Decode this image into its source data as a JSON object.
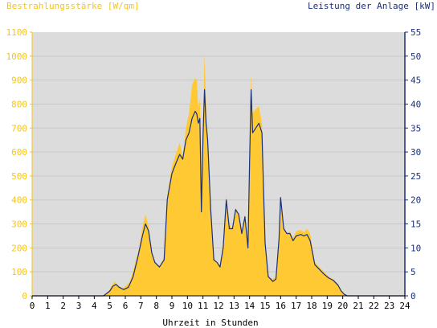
{
  "chart_data": {
    "type": "area",
    "y_left_label": "Bestrahlungsstärke [W/qm]",
    "y_right_label": "Leistung der Anlage [kW]",
    "xlabel": "Uhrzeit in Stunden",
    "xlim": [
      0,
      24
    ],
    "ylim_left": [
      0,
      1100
    ],
    "ylim_right": [
      0,
      55
    ],
    "x_ticks": [
      "0",
      "1",
      "2",
      "3",
      "4",
      "5",
      "6",
      "7",
      "8",
      "9",
      "10",
      "11",
      "12",
      "13",
      "14",
      "15",
      "16",
      "17",
      "18",
      "19",
      "20",
      "21",
      "22",
      "23",
      "24"
    ],
    "y_left_ticks": [
      "0",
      "100",
      "200",
      "300",
      "400",
      "500",
      "600",
      "700",
      "800",
      "900",
      "1000",
      "1100"
    ],
    "y_right_ticks": [
      "0",
      "5",
      "10",
      "15",
      "20",
      "25",
      "30",
      "35",
      "40",
      "45",
      "50",
      "55"
    ],
    "grid": "horizontal",
    "colors": {
      "irradiance": "#ffc933",
      "power": "#1a2f7a",
      "plot_bg": "#dcdcdc",
      "left_axis": "#f5c518",
      "right_axis": "#1a2f7a"
    },
    "series": [
      {
        "name": "Bestrahlungsstärke [W/qm]",
        "axis": "left",
        "style": "area",
        "points": [
          [
            0,
            0
          ],
          [
            4.5,
            0
          ],
          [
            4.9,
            15
          ],
          [
            5.1,
            40
          ],
          [
            5.3,
            60
          ],
          [
            5.5,
            45
          ],
          [
            5.8,
            30
          ],
          [
            6,
            40
          ],
          [
            6.3,
            60
          ],
          [
            6.6,
            130
          ],
          [
            6.9,
            200
          ],
          [
            7.1,
            290
          ],
          [
            7.3,
            340
          ],
          [
            7.5,
            290
          ],
          [
            7.7,
            180
          ],
          [
            7.9,
            140
          ],
          [
            8.2,
            125
          ],
          [
            8.5,
            160
          ],
          [
            8.7,
            420
          ],
          [
            9,
            540
          ],
          [
            9.3,
            600
          ],
          [
            9.5,
            640
          ],
          [
            9.7,
            580
          ],
          [
            9.9,
            700
          ],
          [
            10.1,
            760
          ],
          [
            10.3,
            880
          ],
          [
            10.5,
            910
          ],
          [
            10.6,
            900
          ],
          [
            10.7,
            780
          ],
          [
            10.8,
            820
          ],
          [
            10.9,
            460
          ],
          [
            11,
            700
          ],
          [
            11.1,
            1010
          ],
          [
            11.2,
            800
          ],
          [
            11.3,
            670
          ],
          [
            11.5,
            400
          ],
          [
            11.7,
            160
          ],
          [
            11.9,
            140
          ],
          [
            12.1,
            130
          ],
          [
            12.3,
            220
          ],
          [
            12.5,
            420
          ],
          [
            12.7,
            300
          ],
          [
            12.9,
            280
          ],
          [
            13.1,
            370
          ],
          [
            13.3,
            340
          ],
          [
            13.5,
            260
          ],
          [
            13.7,
            340
          ],
          [
            13.9,
            220
          ],
          [
            14,
            560
          ],
          [
            14.1,
            930
          ],
          [
            14.2,
            760
          ],
          [
            14.4,
            780
          ],
          [
            14.6,
            790
          ],
          [
            14.8,
            720
          ],
          [
            14.9,
            450
          ],
          [
            15,
            230
          ],
          [
            15.2,
            80
          ],
          [
            15.5,
            70
          ],
          [
            15.7,
            80
          ],
          [
            15.9,
            240
          ],
          [
            16,
            390
          ],
          [
            16.2,
            280
          ],
          [
            16.4,
            260
          ],
          [
            16.6,
            270
          ],
          [
            16.8,
            240
          ],
          [
            17,
            270
          ],
          [
            17.3,
            275
          ],
          [
            17.5,
            265
          ],
          [
            17.7,
            280
          ],
          [
            17.9,
            260
          ],
          [
            18.2,
            140
          ],
          [
            18.5,
            120
          ],
          [
            18.8,
            100
          ],
          [
            19.1,
            80
          ],
          [
            19.4,
            70
          ],
          [
            19.7,
            50
          ],
          [
            19.9,
            25
          ],
          [
            20.1,
            10
          ],
          [
            20.3,
            0
          ],
          [
            24,
            0
          ]
        ]
      },
      {
        "name": "Leistung der Anlage [kW]",
        "axis": "right",
        "style": "line",
        "points": [
          [
            0,
            0
          ],
          [
            4.6,
            0
          ],
          [
            5,
            1
          ],
          [
            5.2,
            2
          ],
          [
            5.4,
            2.4
          ],
          [
            5.6,
            1.8
          ],
          [
            5.9,
            1.3
          ],
          [
            6.2,
            1.8
          ],
          [
            6.5,
            4
          ],
          [
            6.8,
            8
          ],
          [
            7.1,
            12.5
          ],
          [
            7.3,
            15
          ],
          [
            7.5,
            13.5
          ],
          [
            7.7,
            9
          ],
          [
            7.9,
            7
          ],
          [
            8.2,
            6
          ],
          [
            8.5,
            7.5
          ],
          [
            8.7,
            20
          ],
          [
            9,
            25.5
          ],
          [
            9.3,
            28
          ],
          [
            9.5,
            29.5
          ],
          [
            9.7,
            28.5
          ],
          [
            9.9,
            32.5
          ],
          [
            10.1,
            34
          ],
          [
            10.3,
            37
          ],
          [
            10.5,
            38.5
          ],
          [
            10.6,
            38
          ],
          [
            10.7,
            36
          ],
          [
            10.8,
            37
          ],
          [
            10.9,
            17.5
          ],
          [
            11,
            33
          ],
          [
            11.1,
            43
          ],
          [
            11.2,
            36
          ],
          [
            11.3,
            32.5
          ],
          [
            11.5,
            18
          ],
          [
            11.7,
            7.5
          ],
          [
            11.9,
            7
          ],
          [
            12.1,
            6
          ],
          [
            12.3,
            10
          ],
          [
            12.5,
            20
          ],
          [
            12.7,
            14
          ],
          [
            12.9,
            14
          ],
          [
            13.1,
            18
          ],
          [
            13.3,
            17
          ],
          [
            13.5,
            13
          ],
          [
            13.7,
            16.5
          ],
          [
            13.9,
            10
          ],
          [
            14,
            28
          ],
          [
            14.1,
            43
          ],
          [
            14.2,
            34
          ],
          [
            14.4,
            35
          ],
          [
            14.6,
            36
          ],
          [
            14.8,
            34
          ],
          [
            14.9,
            22
          ],
          [
            15,
            11
          ],
          [
            15.2,
            4
          ],
          [
            15.5,
            3
          ],
          [
            15.7,
            3.5
          ],
          [
            15.9,
            12
          ],
          [
            16,
            20.5
          ],
          [
            16.2,
            14
          ],
          [
            16.4,
            13
          ],
          [
            16.6,
            13
          ],
          [
            16.8,
            11.5
          ],
          [
            17,
            12.5
          ],
          [
            17.3,
            12.8
          ],
          [
            17.5,
            12.5
          ],
          [
            17.7,
            12.8
          ],
          [
            17.9,
            11.5
          ],
          [
            18.2,
            6.5
          ],
          [
            18.5,
            5.5
          ],
          [
            18.8,
            4.5
          ],
          [
            19.1,
            3.7
          ],
          [
            19.4,
            3.2
          ],
          [
            19.7,
            2.2
          ],
          [
            19.9,
            1
          ],
          [
            20.1,
            0.3
          ],
          [
            20.3,
            0
          ],
          [
            24,
            0
          ]
        ]
      }
    ]
  }
}
